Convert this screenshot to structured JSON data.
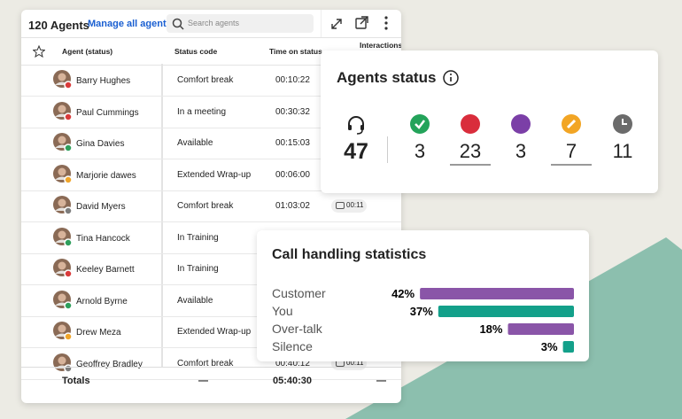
{
  "agents_table": {
    "title": "120 Agents",
    "link": "Manage all agents",
    "search_placeholder": "Search agents",
    "columns": [
      "Agent (status)",
      "Status code",
      "Time on status",
      "Interactions"
    ],
    "rows": [
      {
        "name": "Barry Hughes",
        "status": "Comfort break",
        "time": "00:10:22",
        "status_color": "#d93a3a"
      },
      {
        "name": "Paul Cummings",
        "status": "In a meeting",
        "time": "00:30:32",
        "status_color": "#d93a3a"
      },
      {
        "name": "Gina Davies",
        "status": "Available",
        "time": "00:15:03",
        "status_color": "#2e9e5b"
      },
      {
        "name": "Marjorie dawes",
        "status": "Extended Wrap-up",
        "time": "00:06:00",
        "status_color": "#f0a52a"
      },
      {
        "name": "David Myers",
        "status": "Comfort break",
        "time": "01:03:02",
        "interactions": "00:11",
        "status_color": "#7d7d7d"
      },
      {
        "name": "Tina Hancock",
        "status": "In Training",
        "status_color": "#2e9e5b"
      },
      {
        "name": "Keeley Barnett",
        "status": "In Training",
        "status_color": "#d93a3a"
      },
      {
        "name": "Arnold Byrne",
        "status": "Available",
        "status_color": "#2e9e5b"
      },
      {
        "name": "Drew Meza",
        "status": "Extended Wrap-up",
        "status_color": "#f0a52a"
      },
      {
        "name": "Geoffrey Bradley",
        "status": "Comfort break",
        "time": "00:40:12",
        "interactions": "00:11",
        "status_color": "#7d7d7d"
      }
    ],
    "totals": {
      "label": "Totals",
      "status": "—",
      "time": "05:40:30",
      "interactions": "—"
    }
  },
  "agents_status": {
    "title": "Agents status",
    "total": 47,
    "items": [
      {
        "count": 3,
        "color": "#23a35a"
      },
      {
        "count": 23,
        "color": "#d92d3c",
        "underline": true
      },
      {
        "count": 3,
        "color": "#7b3fa7"
      },
      {
        "count": 7,
        "color": "#f2a524",
        "underline": true
      },
      {
        "count": 11,
        "color": "#6b6b6b"
      }
    ]
  },
  "call_stats": {
    "title": "Call handling statistics",
    "categories": [
      "Customer",
      "You",
      "Over-talk",
      "Silence"
    ],
    "values": [
      42,
      37,
      18,
      3
    ],
    "value_labels": [
      "42%",
      "37%",
      "18%",
      "3%"
    ],
    "colors": [
      "#8a55a8",
      "#13a08a",
      "#8a55a8",
      "#13a08a"
    ]
  }
}
